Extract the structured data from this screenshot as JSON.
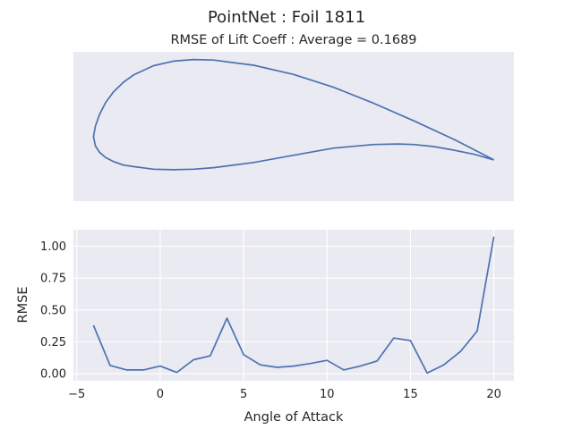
{
  "figure": {
    "suptitle": "PointNet   :   Foil 1811",
    "subtitle": "RMSE of Lift Coeff : Average = 0.1689",
    "colors": {
      "background": "#eaeaf2",
      "line": "#4c72b0",
      "grid": "#ffffff",
      "text": "#262626"
    }
  },
  "chart_data": [
    {
      "type": "line",
      "name": "airfoil-shape",
      "axes_visible": false,
      "grid": false,
      "xlim": [
        -0.05,
        1.05
      ],
      "ylim": [
        -0.08,
        0.21
      ],
      "series": [
        {
          "x": [
            1.0,
            0.95,
            0.9,
            0.8,
            0.7,
            0.6,
            0.5,
            0.4,
            0.3,
            0.25,
            0.2,
            0.15,
            0.1,
            0.075,
            0.05,
            0.03,
            0.015,
            0.005,
            0.0,
            0.005,
            0.015,
            0.03,
            0.05,
            0.075,
            0.1,
            0.15,
            0.2,
            0.25,
            0.3,
            0.4,
            0.5,
            0.6,
            0.7,
            0.76,
            0.8,
            0.85,
            0.9,
            0.95,
            1.0
          ],
          "y": [
            0.0,
            0.02,
            0.04,
            0.076,
            0.11,
            0.141,
            0.166,
            0.184,
            0.194,
            0.195,
            0.192,
            0.183,
            0.165,
            0.151,
            0.132,
            0.111,
            0.088,
            0.066,
            0.045,
            0.027,
            0.015,
            0.005,
            -0.003,
            -0.01,
            -0.013,
            -0.018,
            -0.019,
            -0.018,
            -0.015,
            -0.005,
            0.009,
            0.023,
            0.03,
            0.031,
            0.03,
            0.026,
            0.019,
            0.011,
            0.0
          ]
        }
      ]
    },
    {
      "type": "line",
      "name": "rmse-vs-angle",
      "xlabel": "Angle of Attack",
      "ylabel": "RMSE",
      "xlim": [
        -5.2,
        21.2
      ],
      "ylim": [
        -0.055,
        1.13
      ],
      "xticks": [
        -5,
        0,
        5,
        10,
        15,
        20
      ],
      "yticks": [
        0.0,
        0.25,
        0.5,
        0.75,
        1.0
      ],
      "xtick_labels": [
        "−5",
        "0",
        "5",
        "10",
        "15",
        "20"
      ],
      "ytick_labels": [
        "0.00",
        "0.25",
        "0.50",
        "0.75",
        "1.00"
      ],
      "grid": true,
      "series": [
        {
          "x": [
            -4,
            -3,
            -2,
            -1,
            0,
            1,
            2,
            3,
            4,
            5,
            6,
            7,
            8,
            9,
            10,
            11,
            12,
            13,
            14,
            15,
            16,
            17,
            18,
            19,
            20
          ],
          "y": [
            0.38,
            0.065,
            0.03,
            0.03,
            0.06,
            0.01,
            0.11,
            0.14,
            0.435,
            0.15,
            0.07,
            0.05,
            0.06,
            0.08,
            0.105,
            0.03,
            0.06,
            0.1,
            0.28,
            0.26,
            0.005,
            0.07,
            0.175,
            0.335,
            1.075
          ]
        }
      ]
    }
  ]
}
